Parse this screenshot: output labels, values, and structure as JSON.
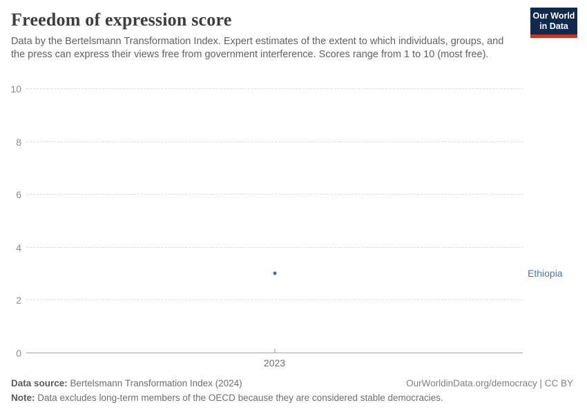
{
  "header": {
    "title": "Freedom of expression score",
    "subtitle": "Data by the Bertelsmann Transformation Index. Expert estimates of the extent to which individuals, groups, and the press can express their views free from government interference. Scores range from 1 to 10 (most free).",
    "logo": {
      "line1": "Our World",
      "line2": "in Data"
    }
  },
  "chart_data": {
    "type": "scatter",
    "title": "Freedom of expression score",
    "x": [
      2023
    ],
    "xtick_labels": [
      "2023"
    ],
    "series": [
      {
        "name": "Ethiopia",
        "values": [
          3
        ]
      }
    ],
    "ylim": [
      0,
      10
    ],
    "yticks": [
      0,
      2,
      4,
      6,
      8,
      10
    ],
    "grid": "horizontal-dashed",
    "legend_position": "right-of-point"
  },
  "colors": {
    "point": "#4C6A9C",
    "entity_label": "#4F74A4",
    "logo_bg": "#0F2A4E",
    "logo_accent": "#C0392B"
  },
  "footer": {
    "source_label": "Data source:",
    "source_text": " Bertelsmann Transformation Index (2024)",
    "credit": "OurWorldinData.org/democracy | CC BY",
    "note_label": "Note:",
    "note_text": " Data excludes long-term members of the OECD because they are considered stable democracies."
  }
}
